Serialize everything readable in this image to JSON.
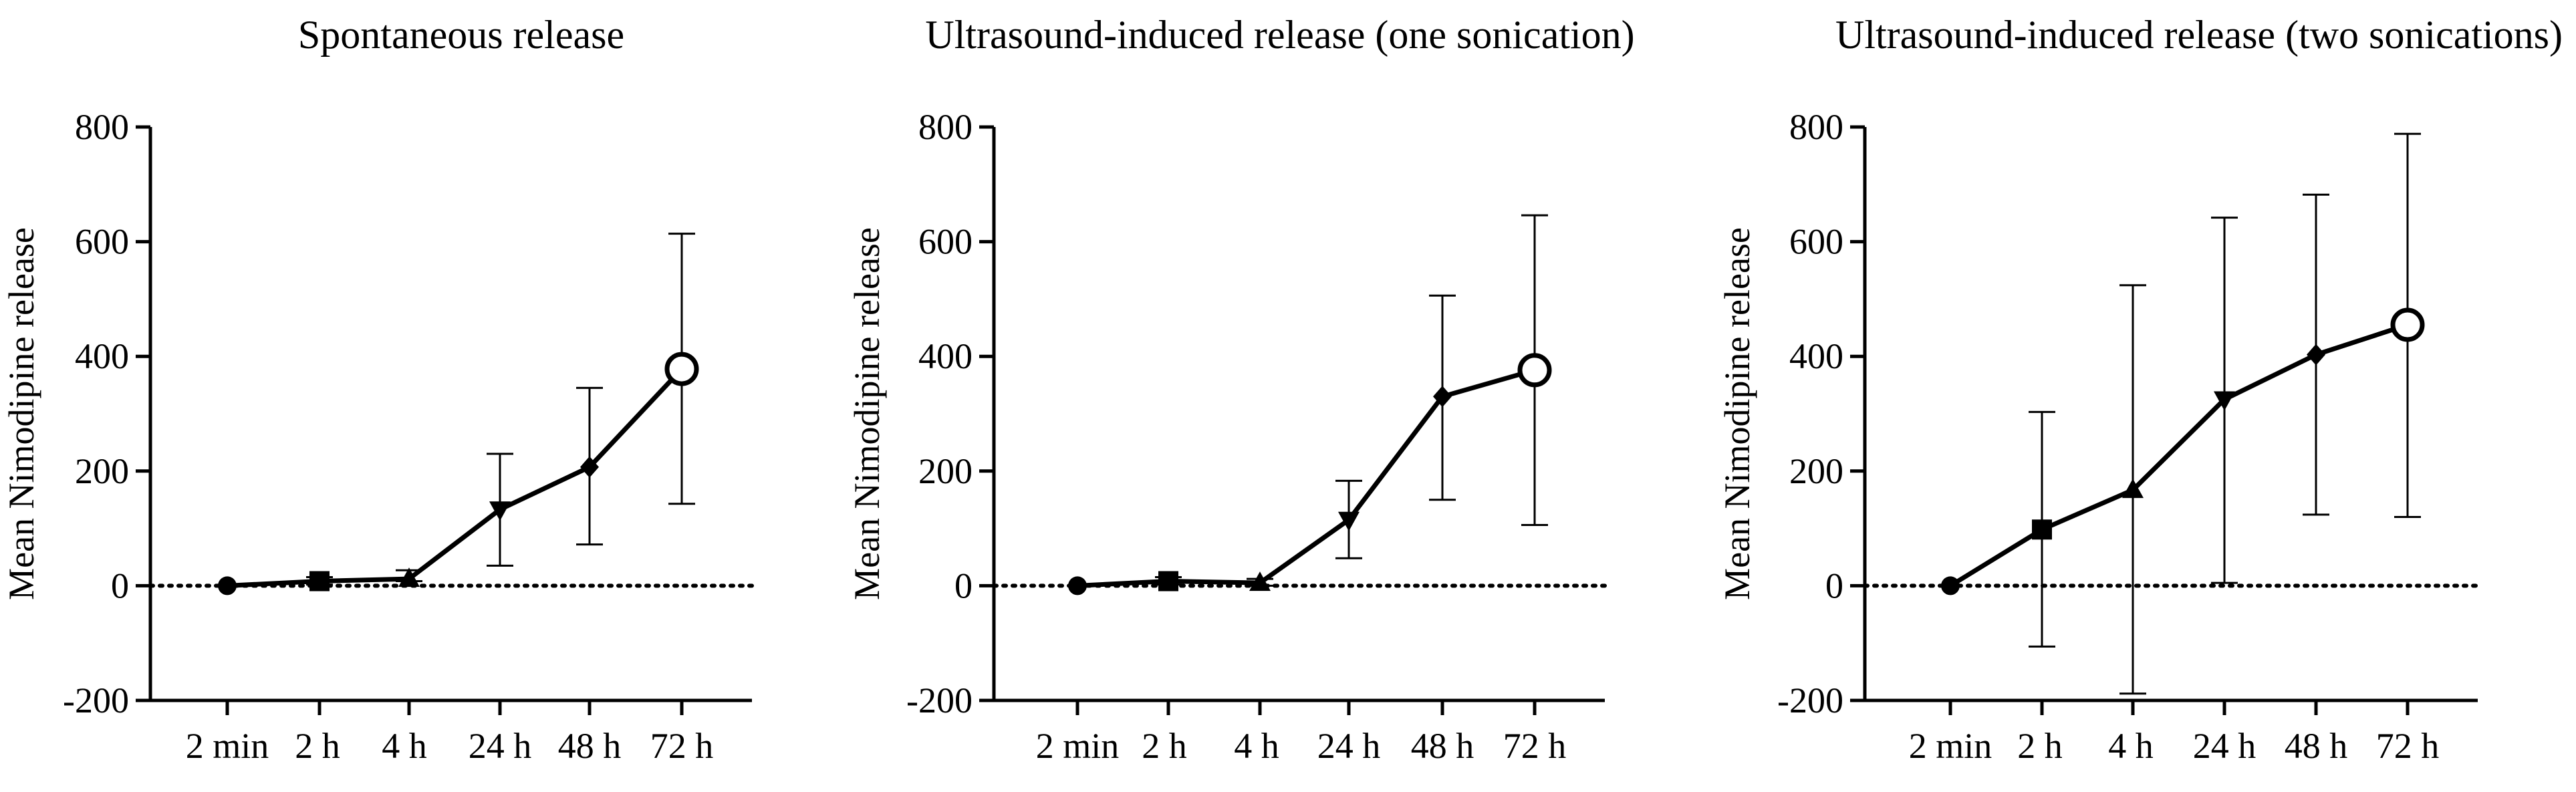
{
  "chart_data": [
    {
      "type": "line",
      "title": "Spontaneous release",
      "xlabel": "",
      "ylabel": "Mean Nimodipine release",
      "categories": [
        "2 min",
        "2 h",
        "4 h",
        "24 h",
        "48 h",
        "72 h"
      ],
      "yticks": [
        -200,
        0,
        200,
        400,
        600,
        800
      ],
      "ylim": [
        -200,
        800
      ],
      "reference_line_y": 0,
      "markers": [
        "circle",
        "square",
        "triangle-up",
        "triangle-down",
        "diamond",
        "circle-open"
      ],
      "series": [
        {
          "values": [
            0,
            8,
            12,
            133,
            207,
            378
          ],
          "error_low": [
            0,
            2,
            8,
            35,
            72,
            143
          ],
          "error_high": [
            0,
            15,
            27,
            230,
            345,
            614
          ]
        }
      ]
    },
    {
      "type": "line",
      "title": "Ultrasound-induced release (one sonication)",
      "xlabel": "",
      "ylabel": "Mean Nimodipine release",
      "categories": [
        "2 min",
        "2 h",
        "4 h",
        "24 h",
        "48 h",
        "72 h"
      ],
      "yticks": [
        -200,
        0,
        200,
        400,
        600,
        800
      ],
      "ylim": [
        -200,
        800
      ],
      "reference_line_y": 0,
      "markers": [
        "circle",
        "square",
        "triangle-up",
        "triangle-down",
        "diamond",
        "circle-open"
      ],
      "series": [
        {
          "values": [
            0,
            8,
            5,
            115,
            330,
            376
          ],
          "error_low": [
            0,
            2,
            0,
            48,
            150,
            106
          ],
          "error_high": [
            0,
            15,
            12,
            183,
            506,
            646
          ]
        }
      ]
    },
    {
      "type": "line",
      "title": "Ultrasound-induced release (two sonications)",
      "xlabel": "",
      "ylabel": "Mean Nimodipine release",
      "categories": [
        "2 min",
        "2 h",
        "4 h",
        "24 h",
        "48 h",
        "72 h"
      ],
      "yticks": [
        -200,
        0,
        200,
        400,
        600,
        800
      ],
      "ylim": [
        -200,
        800
      ],
      "reference_line_y": 0,
      "markers": [
        "circle",
        "square",
        "triangle-up",
        "triangle-down",
        "diamond",
        "circle-open"
      ],
      "series": [
        {
          "values": [
            0,
            98,
            167,
            325,
            403,
            455
          ],
          "error_low": [
            0,
            -106,
            -188,
            5,
            124,
            120
          ],
          "error_high": [
            0,
            303,
            524,
            642,
            682,
            788
          ]
        }
      ]
    }
  ]
}
